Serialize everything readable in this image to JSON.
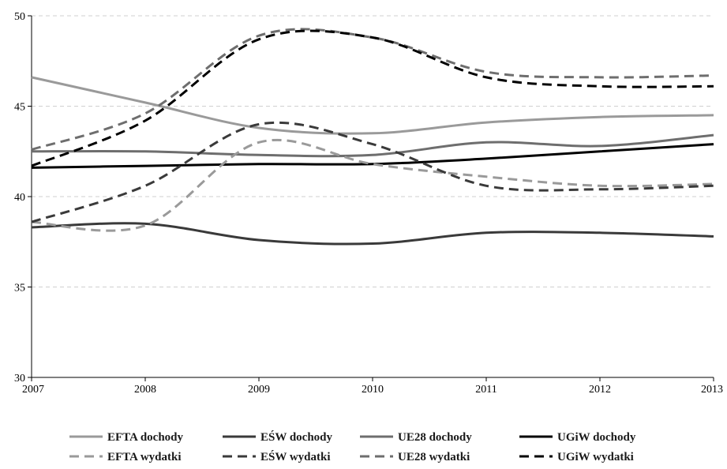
{
  "chart_data": {
    "type": "line",
    "title": "",
    "xlabel": "",
    "ylabel": "",
    "x": [
      2007,
      2008,
      2009,
      2010,
      2011,
      2012,
      2013
    ],
    "x_tick_labels": [
      "2007",
      "2008",
      "2009",
      "2010",
      "2011",
      "2012",
      "2013"
    ],
    "y_tick_labels": [
      "30",
      "35",
      "40",
      "45",
      "50"
    ],
    "y_ticks": [
      30,
      35,
      40,
      45,
      50
    ],
    "ylim": [
      30,
      50
    ],
    "grid": "horizontal dashed",
    "legend_position": "bottom",
    "series": [
      {
        "name": "EFTA dochody",
        "color": "#9a9a9a",
        "dash": "solid",
        "values": [
          46.6,
          45.2,
          43.8,
          43.5,
          44.1,
          44.4,
          44.5
        ]
      },
      {
        "name": "EŚW dochody",
        "color": "#3a3a3a",
        "dash": "solid",
        "values": [
          38.3,
          38.5,
          37.6,
          37.4,
          38.0,
          38.0,
          37.8
        ]
      },
      {
        "name": "UE28 dochody",
        "color": "#6e6e6e",
        "dash": "solid",
        "values": [
          42.5,
          42.5,
          42.3,
          42.3,
          43.0,
          42.8,
          43.4
        ]
      },
      {
        "name": "UGiW dochody",
        "color": "#000000",
        "dash": "solid",
        "values": [
          41.6,
          41.7,
          41.8,
          41.8,
          42.1,
          42.5,
          42.9
        ]
      },
      {
        "name": "EFTA wydatki",
        "color": "#9a9a9a",
        "dash": "dashed",
        "values": [
          38.6,
          38.4,
          43.0,
          41.8,
          41.1,
          40.6,
          40.7
        ]
      },
      {
        "name": "EŚW wydatki",
        "color": "#3a3a3a",
        "dash": "dashed",
        "values": [
          38.6,
          40.6,
          44.0,
          42.9,
          40.6,
          40.4,
          40.6
        ]
      },
      {
        "name": "UE28 wydatki",
        "color": "#6e6e6e",
        "dash": "dashed",
        "values": [
          42.6,
          44.6,
          48.9,
          48.8,
          46.9,
          46.6,
          46.7
        ]
      },
      {
        "name": "UGiW wydatki",
        "color": "#000000",
        "dash": "dashed",
        "values": [
          41.7,
          44.2,
          48.7,
          48.8,
          46.6,
          46.1,
          46.1
        ]
      }
    ]
  }
}
